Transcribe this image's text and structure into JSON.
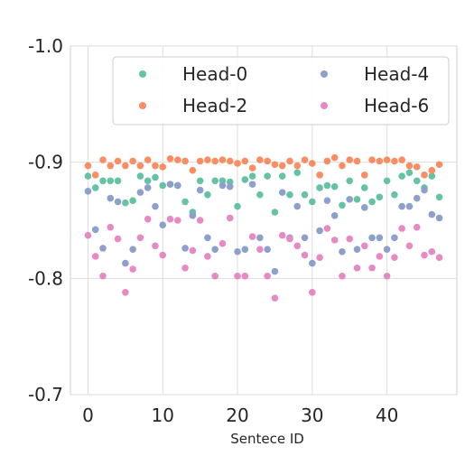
{
  "chart_data": {
    "type": "scatter",
    "title": "",
    "xlabel": "Sentece ID",
    "ylabel": "",
    "xlim": [
      -2.35,
      49.35
    ],
    "ylim": [
      -0.7,
      -1.0
    ],
    "y_inverted": true,
    "x_ticks": [
      0,
      10,
      20,
      30,
      40
    ],
    "y_ticks": [
      -1.0,
      -0.9,
      -0.8,
      -0.7
    ],
    "x_tick_labels": [
      "0",
      "10",
      "20",
      "30",
      "40"
    ],
    "y_tick_labels": [
      "-1.0",
      "-0.9",
      "-0.8",
      "-0.7"
    ],
    "grid": true,
    "legend_position": "top-right",
    "x": [
      0,
      1,
      2,
      3,
      4,
      5,
      6,
      7,
      8,
      9,
      10,
      11,
      12,
      13,
      14,
      15,
      16,
      17,
      18,
      19,
      20,
      21,
      22,
      23,
      24,
      25,
      26,
      27,
      28,
      29,
      30,
      31,
      32,
      33,
      34,
      35,
      36,
      37,
      38,
      39,
      40,
      41,
      42,
      43,
      44,
      45,
      46,
      47
    ],
    "series": [
      {
        "name": "Head-0",
        "color": "#66c2a5",
        "values": [
          -0.888,
          -0.878,
          -0.884,
          -0.884,
          -0.884,
          -0.865,
          -0.867,
          -0.888,
          -0.884,
          -0.887,
          -0.88,
          -0.881,
          -0.88,
          -0.866,
          -0.857,
          -0.884,
          -0.872,
          -0.884,
          -0.884,
          -0.883,
          -0.862,
          -0.885,
          -0.888,
          -0.872,
          -0.888,
          -0.857,
          -0.888,
          -0.872,
          -0.891,
          -0.872,
          -0.866,
          -0.878,
          -0.88,
          -0.879,
          -0.863,
          -0.884,
          -0.868,
          -0.878,
          -0.866,
          -0.87,
          -0.884,
          -0.872,
          -0.888,
          -0.891,
          -0.884,
          -0.878,
          -0.888,
          -0.87
        ]
      },
      {
        "name": "Head-2",
        "color": "#fc8d62",
        "values": [
          -0.897,
          -0.889,
          -0.902,
          -0.897,
          -0.901,
          -0.897,
          -0.901,
          -0.897,
          -0.902,
          -0.897,
          -0.896,
          -0.903,
          -0.902,
          -0.901,
          -0.893,
          -0.901,
          -0.902,
          -0.901,
          -0.902,
          -0.901,
          -0.899,
          -0.901,
          -0.895,
          -0.902,
          -0.901,
          -0.898,
          -0.897,
          -0.901,
          -0.897,
          -0.902,
          -0.899,
          -0.889,
          -0.901,
          -0.904,
          -0.897,
          -0.902,
          -0.901,
          -0.889,
          -0.902,
          -0.901,
          -0.902,
          -0.901,
          -0.902,
          -0.897,
          -0.896,
          -0.889,
          -0.893,
          -0.898
        ]
      },
      {
        "name": "Head-4",
        "color": "#8da0cb",
        "values": [
          -0.875,
          -0.842,
          -0.826,
          -0.869,
          -0.866,
          -0.813,
          -0.825,
          -0.874,
          -0.878,
          -0.862,
          -0.846,
          -0.881,
          -0.88,
          -0.826,
          -0.854,
          -0.876,
          -0.835,
          -0.825,
          -0.88,
          -0.879,
          -0.823,
          -0.825,
          -0.881,
          -0.835,
          -0.825,
          -0.806,
          -0.874,
          -0.835,
          -0.862,
          -0.835,
          -0.813,
          -0.841,
          -0.867,
          -0.854,
          -0.823,
          -0.868,
          -0.825,
          -0.861,
          -0.835,
          -0.835,
          -0.825,
          -0.835,
          -0.862,
          -0.862,
          -0.869,
          -0.876,
          -0.855,
          -0.852
        ]
      },
      {
        "name": "Head-6",
        "color": "#e78ac3",
        "values": [
          -0.837,
          -0.819,
          -0.802,
          -0.844,
          -0.834,
          -0.788,
          -0.808,
          -0.835,
          -0.851,
          -0.828,
          -0.82,
          -0.851,
          -0.85,
          -0.809,
          -0.824,
          -0.85,
          -0.819,
          -0.802,
          -0.83,
          -0.852,
          -0.802,
          -0.802,
          -0.836,
          -0.825,
          -0.802,
          -0.783,
          -0.837,
          -0.834,
          -0.828,
          -0.82,
          -0.788,
          -0.818,
          -0.843,
          -0.833,
          -0.802,
          -0.834,
          -0.809,
          -0.828,
          -0.809,
          -0.819,
          -0.802,
          -0.818,
          -0.843,
          -0.828,
          -0.844,
          -0.82,
          -0.823,
          -0.818
        ]
      }
    ]
  }
}
